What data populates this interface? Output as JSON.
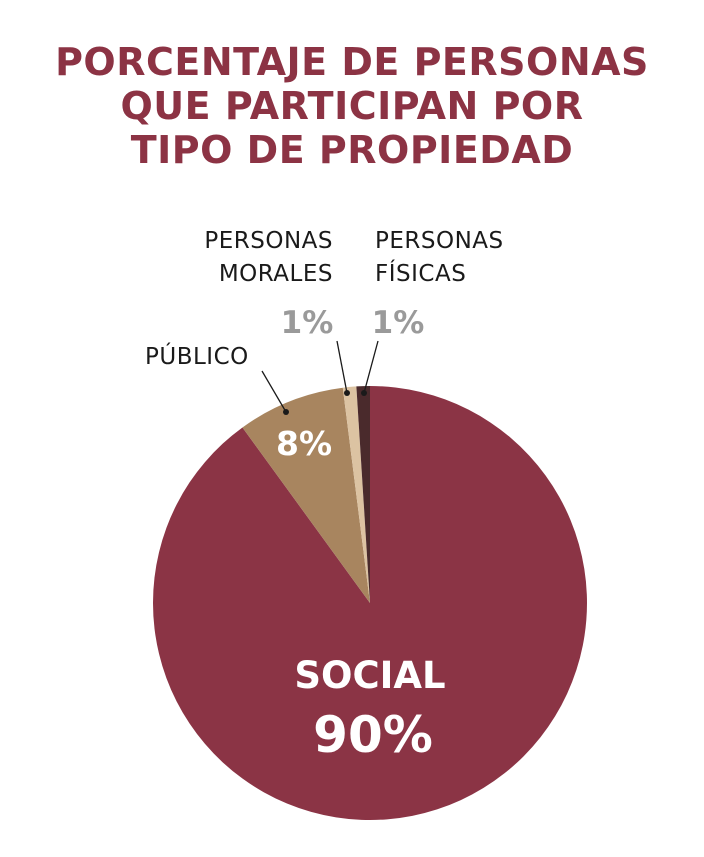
{
  "title_lines": [
    "PORCENTAJE DE PERSONAS",
    "QUE PARTICIPAN POR",
    "TIPO DE PROPIEDAD"
  ],
  "chart_data": {
    "type": "pie",
    "title": "PORCENTAJE DE PERSONAS QUE PARTICIPAN POR TIPO DE PROPIEDAD",
    "slices": [
      {
        "label": "SOCIAL",
        "value": 90,
        "value_label": "90%",
        "color": "#8b3445"
      },
      {
        "label": "PÚBLICO",
        "value": 8,
        "value_label": "8%",
        "color": "#a8855f"
      },
      {
        "label": "PERSONAS MORALES",
        "label_lines": [
          "PERSONAS",
          "MORALES"
        ],
        "value": 1,
        "value_label": "1%",
        "color": "#dcc3a2"
      },
      {
        "label": "PERSONAS FÍSICAS",
        "label_lines": [
          "PERSONAS",
          "FÍSICAS"
        ],
        "value": 1,
        "value_label": "1%",
        "color": "#4a2a2c"
      }
    ],
    "legend": "none"
  }
}
